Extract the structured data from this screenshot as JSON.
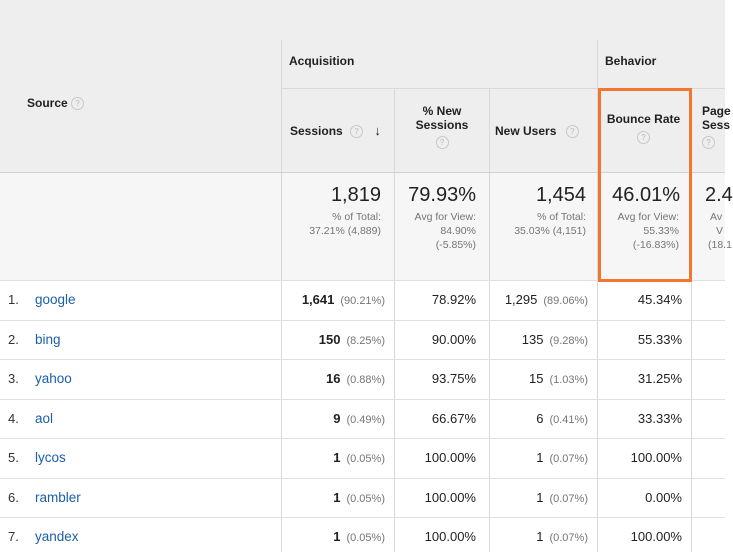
{
  "header": {
    "source_label": "Source",
    "acquisition_label": "Acquisition",
    "behavior_label": "Behavior",
    "help_glyph": "?",
    "sort_glyph": "↓",
    "columns": {
      "sessions": "Sessions",
      "new_sessions_line1": "% New",
      "new_sessions_line2": "Sessions",
      "new_users": "New Users",
      "bounce_rate": "Bounce Rate",
      "pages_line1": "Page",
      "pages_line2": "Sess"
    }
  },
  "totals": {
    "sessions": {
      "value": "1,819",
      "line1": "% of Total:",
      "line2": "37.21% (4,889)"
    },
    "new_sessions": {
      "value": "79.93%",
      "line1": "Avg for View:",
      "line2": "84.90%",
      "line3": "(-5.85%)"
    },
    "new_users": {
      "value": "1,454",
      "line1": "% of Total:",
      "line2": "35.03% (4,151)"
    },
    "bounce_rate": {
      "value": "46.01%",
      "line1": "Avg for View:",
      "line2": "55.33%",
      "line3": "(-16.83%)"
    },
    "pages": {
      "value": "2.4",
      "line1": "Av",
      "line2": "V",
      "line3": "(18.1"
    }
  },
  "rows": [
    {
      "idx": "1.",
      "source": "google",
      "sessions": "1,641",
      "sessions_pct": "(90.21%)",
      "new_sessions": "78.92%",
      "new_users": "1,295",
      "new_users_pct": "(89.06%)",
      "bounce_rate": "45.34%"
    },
    {
      "idx": "2.",
      "source": "bing",
      "sessions": "150",
      "sessions_pct": "(8.25%)",
      "new_sessions": "90.00%",
      "new_users": "135",
      "new_users_pct": "(9.28%)",
      "bounce_rate": "55.33%"
    },
    {
      "idx": "3.",
      "source": "yahoo",
      "sessions": "16",
      "sessions_pct": "(0.88%)",
      "new_sessions": "93.75%",
      "new_users": "15",
      "new_users_pct": "(1.03%)",
      "bounce_rate": "31.25%"
    },
    {
      "idx": "4.",
      "source": "aol",
      "sessions": "9",
      "sessions_pct": "(0.49%)",
      "new_sessions": "66.67%",
      "new_users": "6",
      "new_users_pct": "(0.41%)",
      "bounce_rate": "33.33%"
    },
    {
      "idx": "5.",
      "source": "lycos",
      "sessions": "1",
      "sessions_pct": "(0.05%)",
      "new_sessions": "100.00%",
      "new_users": "1",
      "new_users_pct": "(0.07%)",
      "bounce_rate": "100.00%"
    },
    {
      "idx": "6.",
      "source": "rambler",
      "sessions": "1",
      "sessions_pct": "(0.05%)",
      "new_sessions": "100.00%",
      "new_users": "1",
      "new_users_pct": "(0.07%)",
      "bounce_rate": "0.00%"
    },
    {
      "idx": "7.",
      "source": "yandex",
      "sessions": "1",
      "sessions_pct": "(0.05%)",
      "new_sessions": "100.00%",
      "new_users": "1",
      "new_users_pct": "(0.07%)",
      "bounce_rate": "100.00%"
    }
  ],
  "colors": {
    "link": "#1a5fa8",
    "highlight": "#f2762e",
    "header_bg": "#eeeeee"
  }
}
